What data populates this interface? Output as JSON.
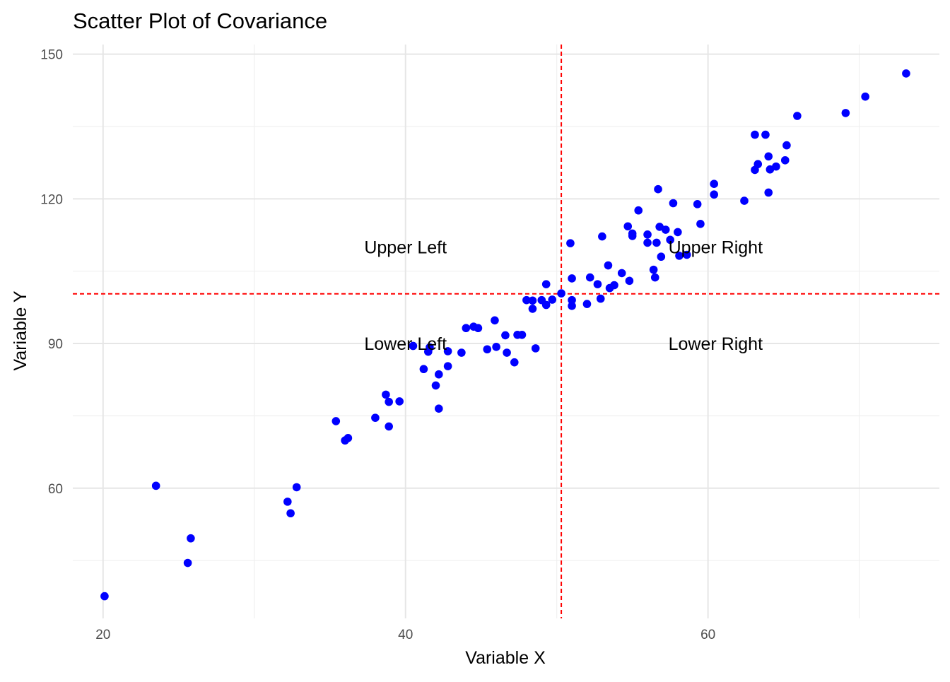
{
  "chart_data": {
    "type": "scatter",
    "title": "Scatter Plot of Covariance",
    "xlabel": "Variable X",
    "ylabel": "Variable Y",
    "xlim": [
      18,
      75.3
    ],
    "ylim": [
      33,
      152
    ],
    "x_ticks": [
      20,
      40,
      60
    ],
    "x_tick_labels": [
      "20",
      "40",
      "60"
    ],
    "y_ticks": [
      60,
      90,
      120,
      150
    ],
    "y_tick_labels": [
      "60",
      "90",
      "120",
      "150"
    ],
    "x_minor_grid": [
      30,
      50,
      70
    ],
    "y_minor_grid": [
      45,
      75,
      105,
      135
    ],
    "grid": true,
    "point_color": "#0000ff",
    "reference_lines": [
      {
        "orientation": "vertical",
        "value": 50.3,
        "color": "#ff0000",
        "style": "dashed"
      },
      {
        "orientation": "horizontal",
        "value": 100.3,
        "color": "#ff0000",
        "style": "dashed"
      }
    ],
    "annotations": [
      {
        "text": "Upper Left",
        "x": 40,
        "y": 110
      },
      {
        "text": "Upper Right",
        "x": 60.5,
        "y": 110
      },
      {
        "text": "Lower Left",
        "x": 40,
        "y": 90
      },
      {
        "text": "Lower Right",
        "x": 60.5,
        "y": 90
      }
    ],
    "points": [
      [
        20.1,
        37.6
      ],
      [
        23.5,
        60.5
      ],
      [
        25.6,
        44.5
      ],
      [
        25.8,
        49.6
      ],
      [
        32.2,
        57.2
      ],
      [
        32.4,
        54.8
      ],
      [
        32.8,
        60.2
      ],
      [
        35.4,
        73.9
      ],
      [
        36.0,
        69.9
      ],
      [
        36.2,
        70.4
      ],
      [
        38.0,
        74.6
      ],
      [
        38.7,
        79.4
      ],
      [
        38.9,
        72.8
      ],
      [
        38.9,
        77.9
      ],
      [
        39.6,
        78.0
      ],
      [
        40.5,
        89.5
      ],
      [
        41.2,
        84.7
      ],
      [
        41.5,
        88.3
      ],
      [
        41.6,
        89.2
      ],
      [
        42.0,
        81.3
      ],
      [
        42.2,
        76.5
      ],
      [
        42.2,
        83.6
      ],
      [
        42.8,
        88.4
      ],
      [
        42.8,
        85.3
      ],
      [
        43.7,
        88.1
      ],
      [
        44.0,
        93.2
      ],
      [
        44.5,
        93.5
      ],
      [
        44.8,
        93.2
      ],
      [
        45.4,
        88.8
      ],
      [
        45.9,
        94.8
      ],
      [
        46.0,
        89.3
      ],
      [
        46.6,
        91.7
      ],
      [
        46.7,
        88.1
      ],
      [
        47.2,
        86.1
      ],
      [
        47.4,
        91.8
      ],
      [
        47.7,
        91.8
      ],
      [
        48.6,
        89.0
      ],
      [
        48.0,
        99.0
      ],
      [
        48.4,
        98.9
      ],
      [
        48.4,
        97.2
      ],
      [
        49.0,
        99.0
      ],
      [
        49.3,
        98.0
      ],
      [
        49.3,
        102.3
      ],
      [
        49.7,
        99.1
      ],
      [
        50.3,
        100.4
      ],
      [
        50.9,
        110.8
      ],
      [
        51.0,
        103.5
      ],
      [
        51.0,
        99.0
      ],
      [
        51.0,
        97.8
      ],
      [
        52.0,
        98.2
      ],
      [
        52.2,
        103.7
      ],
      [
        52.7,
        102.3
      ],
      [
        52.9,
        99.3
      ],
      [
        53.0,
        112.2
      ],
      [
        53.4,
        106.2
      ],
      [
        53.5,
        101.5
      ],
      [
        53.8,
        102.1
      ],
      [
        54.3,
        104.6
      ],
      [
        54.7,
        114.3
      ],
      [
        54.8,
        103.0
      ],
      [
        55.0,
        112.3
      ],
      [
        55.0,
        112.8
      ],
      [
        55.4,
        117.6
      ],
      [
        56.0,
        112.6
      ],
      [
        56.0,
        110.9
      ],
      [
        56.4,
        105.3
      ],
      [
        56.5,
        103.7
      ],
      [
        56.6,
        110.9
      ],
      [
        56.8,
        114.2
      ],
      [
        56.9,
        108.0
      ],
      [
        57.2,
        113.6
      ],
      [
        57.5,
        111.5
      ],
      [
        57.7,
        119.1
      ],
      [
        56.7,
        122.0
      ],
      [
        58.0,
        113.1
      ],
      [
        58.1,
        108.2
      ],
      [
        58.6,
        108.4
      ],
      [
        59.3,
        118.9
      ],
      [
        59.5,
        114.8
      ],
      [
        60.4,
        123.1
      ],
      [
        60.4,
        120.9
      ],
      [
        62.4,
        119.6
      ],
      [
        63.1,
        126.0
      ],
      [
        63.1,
        133.3
      ],
      [
        63.3,
        127.2
      ],
      [
        63.8,
        133.3
      ],
      [
        64.0,
        128.8
      ],
      [
        64.0,
        121.3
      ],
      [
        64.1,
        126.1
      ],
      [
        64.5,
        126.7
      ],
      [
        65.1,
        128.0
      ],
      [
        65.2,
        131.1
      ],
      [
        65.9,
        137.2
      ],
      [
        69.1,
        137.8
      ],
      [
        70.4,
        141.2
      ],
      [
        73.1,
        146.0
      ]
    ]
  }
}
